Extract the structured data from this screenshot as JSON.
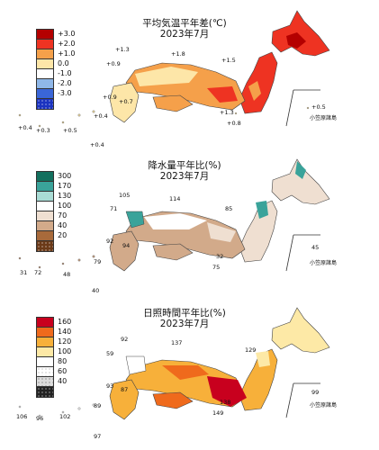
{
  "panels": [
    {
      "id": "temperature",
      "title": "平均気温平年差(℃)",
      "subtitle": "2023年7月",
      "legend": [
        {
          "label": "+3.0",
          "color": "#b40000"
        },
        {
          "label": "+2.0",
          "color": "#ee3322"
        },
        {
          "label": "+1.0",
          "color": "#f5a04a"
        },
        {
          "label": "0.0",
          "color": "#fde6a8"
        },
        {
          "label": "-1.0",
          "color": "#ffffff"
        },
        {
          "label": "-2.0",
          "color": "#8fb7e8"
        },
        {
          "label": "-3.0",
          "color": "#3a66d8"
        },
        {
          "label": "",
          "color": "#1b33c0"
        }
      ],
      "values": [
        "+1.3",
        "+1.8",
        "+0.9",
        "+1.5",
        "+0.9",
        "+0.7",
        "+0.4",
        "+0.5",
        "+0.4",
        "+0.3",
        "+1.3",
        "+0.8",
        "+0.5",
        "+0.4"
      ],
      "inset_label": "小笠原諸島"
    },
    {
      "id": "precipitation",
      "title": "降水量平年比(%)",
      "subtitle": "2023年7月",
      "legend": [
        {
          "label": "300",
          "color": "#13705e"
        },
        {
          "label": "170",
          "color": "#3aa39a"
        },
        {
          "label": "130",
          "color": "#a9dcd5"
        },
        {
          "label": "100",
          "color": "#ffffff"
        },
        {
          "label": "70",
          "color": "#efdfd1"
        },
        {
          "label": "40",
          "color": "#d2aa8a"
        },
        {
          "label": "20",
          "color": "#a86a3b"
        },
        {
          "label": "",
          "color": "#6b3a18"
        }
      ],
      "values": [
        "105",
        "114",
        "71",
        "85",
        "92",
        "94",
        "45",
        "32",
        "75",
        "31",
        "72",
        "48",
        "79",
        "40"
      ],
      "inset_label": "小笠原諸島"
    },
    {
      "id": "sunshine",
      "title": "日照時間平年比(%)",
      "subtitle": "2023年7月",
      "legend": [
        {
          "label": "160",
          "color": "#c8001e"
        },
        {
          "label": "140",
          "color": "#ef6a1c"
        },
        {
          "label": "120",
          "color": "#f7b03a"
        },
        {
          "label": "100",
          "color": "#fde9a6"
        },
        {
          "label": "80",
          "color": "#ffffff"
        },
        {
          "label": "60",
          "color": "#d8d8d8"
        },
        {
          "label": "40",
          "color": "#9a9a9a"
        },
        {
          "label": "",
          "color": "#444444"
        }
      ],
      "values": [
        "92",
        "137",
        "129",
        "59",
        "93",
        "87",
        "138",
        "149",
        "99",
        "106",
        "96",
        "102",
        "89",
        "97"
      ],
      "inset_label": "小笠原諸島"
    }
  ]
}
